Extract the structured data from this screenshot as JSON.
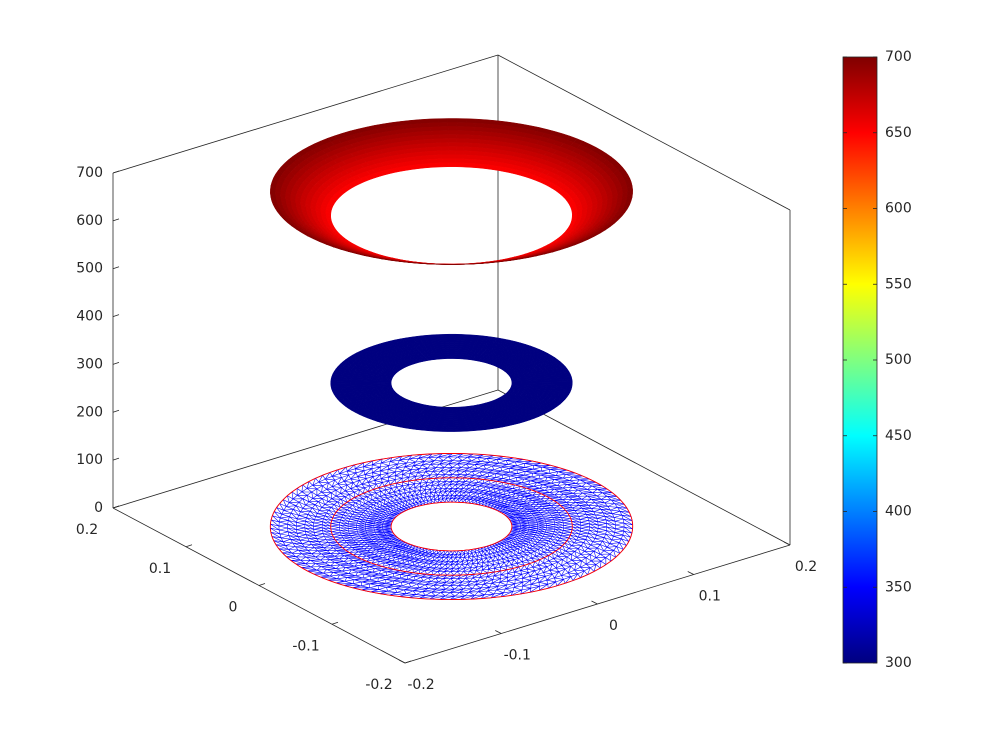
{
  "chart_data": {
    "type": "surface3d",
    "xlim": [
      -0.2,
      0.2
    ],
    "xticks": [
      -0.2,
      -0.1,
      0,
      0.1,
      0.2
    ],
    "ylim": [
      -0.2,
      0.2
    ],
    "yticks": [
      -0.2,
      -0.1,
      0,
      0.1,
      0.2
    ],
    "zlim": [
      0,
      700
    ],
    "zticks": [
      0,
      100,
      200,
      300,
      400,
      500,
      600,
      700
    ],
    "colormap": "jet",
    "clim": [
      300,
      700
    ],
    "cticks": [
      300,
      350,
      400,
      450,
      500,
      550,
      600,
      650,
      700
    ],
    "surfaces": [
      {
        "r": [
          0.1,
          0.15
        ],
        "z": [
          650,
          700
        ]
      },
      {
        "r": [
          0.05,
          0.1
        ],
        "z": [
          300,
          300
        ]
      }
    ],
    "mesh": {
      "r": [
        0.05,
        0.1,
        0.15
      ],
      "z": 0,
      "color": "#0000ff",
      "edge_color": "#ff0000"
    }
  }
}
